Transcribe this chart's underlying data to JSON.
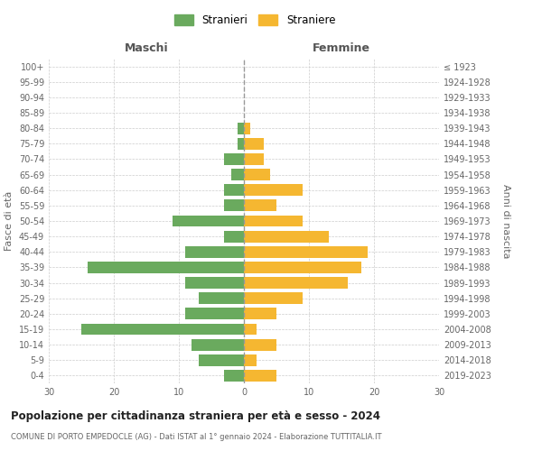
{
  "age_groups": [
    "0-4",
    "5-9",
    "10-14",
    "15-19",
    "20-24",
    "25-29",
    "30-34",
    "35-39",
    "40-44",
    "45-49",
    "50-54",
    "55-59",
    "60-64",
    "65-69",
    "70-74",
    "75-79",
    "80-84",
    "85-89",
    "90-94",
    "95-99",
    "100+"
  ],
  "birth_years": [
    "2019-2023",
    "2014-2018",
    "2009-2013",
    "2004-2008",
    "1999-2003",
    "1994-1998",
    "1989-1993",
    "1984-1988",
    "1979-1983",
    "1974-1978",
    "1969-1973",
    "1964-1968",
    "1959-1963",
    "1954-1958",
    "1949-1953",
    "1944-1948",
    "1939-1943",
    "1934-1938",
    "1929-1933",
    "1924-1928",
    "≤ 1923"
  ],
  "males": [
    3,
    7,
    8,
    25,
    9,
    7,
    9,
    24,
    9,
    3,
    11,
    3,
    3,
    2,
    3,
    1,
    1,
    0,
    0,
    0,
    0
  ],
  "females": [
    5,
    2,
    5,
    2,
    5,
    9,
    16,
    18,
    19,
    13,
    9,
    5,
    9,
    4,
    3,
    3,
    1,
    0,
    0,
    0,
    0
  ],
  "male_color": "#6aaa5e",
  "female_color": "#f5b731",
  "background_color": "#ffffff",
  "grid_color": "#cccccc",
  "title": "Popolazione per cittadinanza straniera per età e sesso - 2024",
  "subtitle": "COMUNE DI PORTO EMPEDOCLE (AG) - Dati ISTAT al 1° gennaio 2024 - Elaborazione TUTTITALIA.IT",
  "xlabel_left": "Maschi",
  "xlabel_right": "Femmine",
  "ylabel_left": "Fasce di età",
  "ylabel_right": "Anni di nascita",
  "legend_male": "Stranieri",
  "legend_female": "Straniere",
  "xlim": 30
}
